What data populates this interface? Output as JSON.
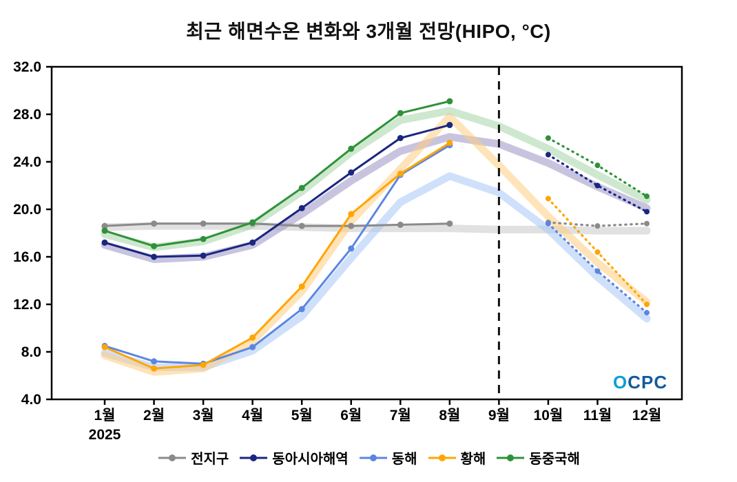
{
  "title": "최근 해면수온 변화와 3개월 전망(HIPO, °C)",
  "logo": {
    "o": "O",
    "rest": "CPC"
  },
  "chart_data": {
    "type": "line",
    "title": "최근 해면수온 변화와 3개월 전망(HIPO, °C)",
    "x_categories": [
      "1월",
      "2월",
      "3월",
      "4월",
      "5월",
      "6월",
      "7월",
      "8월",
      "9월",
      "10월",
      "11월",
      "12월"
    ],
    "x_year_label": "2025",
    "ylim": [
      4.0,
      32.0
    ],
    "yticks": [
      "4.0",
      "8.0",
      "12.0",
      "16.0",
      "20.0",
      "24.0",
      "28.0",
      "32.0"
    ],
    "grid": false,
    "legend_position": "bottom",
    "forecast_divider_month": "9월",
    "note": "solid lines with round markers = observed Jan–Aug 2025; dotted lines with markers = 3-month forecast Oct–Dec; translucent thick bands = climatological range",
    "series": [
      {
        "name": "전지구",
        "color": "#8a8a8a",
        "band_color": "#c9c9c9",
        "observed": [
          18.6,
          18.8,
          18.8,
          18.8,
          18.6,
          18.6,
          18.7,
          18.8
        ],
        "forecast": [
          18.9,
          18.6,
          18.8
        ],
        "band": [
          18.5,
          18.6,
          18.6,
          18.6,
          18.5,
          18.4,
          18.4,
          18.4,
          18.3,
          18.3,
          18.2,
          18.2
        ]
      },
      {
        "name": "동아시아해역",
        "color": "#1a2680",
        "band_color": "#9a93c4",
        "observed": [
          17.2,
          16.0,
          16.1,
          17.2,
          20.1,
          23.1,
          26.0,
          27.1
        ],
        "forecast": [
          24.6,
          22.0,
          19.8
        ],
        "band": [
          17.0,
          15.8,
          16.0,
          17.0,
          19.6,
          22.4,
          24.9,
          26.1,
          25.5,
          23.9,
          21.9,
          20.1
        ]
      },
      {
        "name": "동해",
        "color": "#5c86e0",
        "band_color": "#a8c6f5",
        "observed": [
          8.5,
          7.2,
          7.0,
          8.4,
          11.6,
          16.7,
          22.9,
          25.4
        ],
        "forecast": [
          18.8,
          14.8,
          11.3
        ],
        "band": [
          7.9,
          6.7,
          6.7,
          8.1,
          11.0,
          15.9,
          20.6,
          22.8,
          21.4,
          18.3,
          14.3,
          10.8
        ]
      },
      {
        "name": "황해",
        "color": "#ffa500",
        "band_color": "#ffcc80",
        "observed": [
          8.4,
          6.6,
          6.9,
          9.2,
          13.5,
          19.6,
          23.0,
          25.6
        ],
        "forecast": [
          20.9,
          16.4,
          12.0
        ],
        "band": [
          7.7,
          6.3,
          6.6,
          8.9,
          13.1,
          19.0,
          23.4,
          27.8,
          23.7,
          19.4,
          15.5,
          12.2
        ]
      },
      {
        "name": "동중국해",
        "color": "#2f9138",
        "band_color": "#a5d6a7",
        "observed": [
          18.2,
          16.9,
          17.5,
          18.9,
          21.8,
          25.1,
          28.1,
          29.1
        ],
        "forecast": [
          26.0,
          23.7,
          21.1
        ],
        "band": [
          17.9,
          16.8,
          17.3,
          18.7,
          21.5,
          24.8,
          27.5,
          28.3,
          27.0,
          25.1,
          22.9,
          20.8
        ]
      }
    ]
  }
}
